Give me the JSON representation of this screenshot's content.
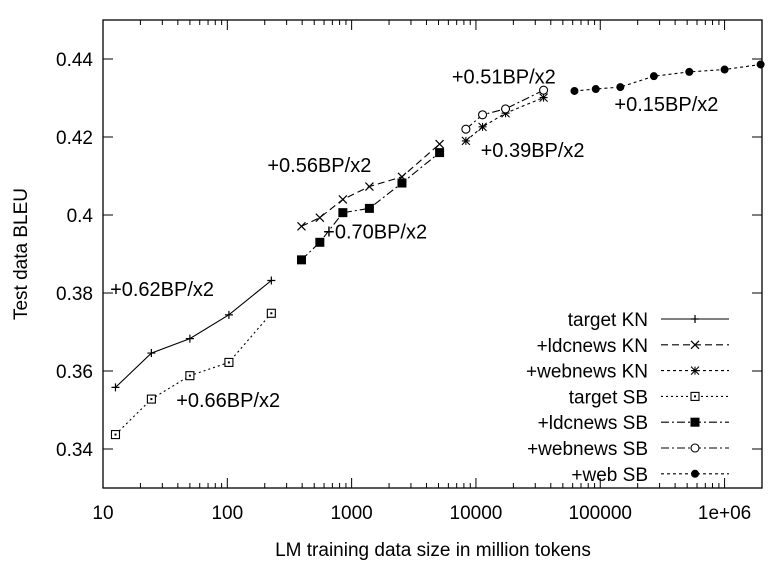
{
  "chart_data": {
    "type": "line",
    "title": "",
    "xlabel": "LM training data size in million tokens",
    "ylabel": "Test data BLEU",
    "xscale": "log",
    "xlim": [
      10,
      2000000
    ],
    "ylim": [
      0.33,
      0.45
    ],
    "grid": false,
    "legend_position": "bottom-right",
    "x_ticks": [
      {
        "value": 10,
        "label": "10"
      },
      {
        "value": 100,
        "label": "100"
      },
      {
        "value": 1000,
        "label": "1000"
      },
      {
        "value": 10000,
        "label": "10000"
      },
      {
        "value": 100000,
        "label": "100000"
      },
      {
        "value": 1000000,
        "label": "1e+06"
      }
    ],
    "y_ticks": [
      {
        "value": 0.34,
        "label": "0.34"
      },
      {
        "value": 0.36,
        "label": "0.36"
      },
      {
        "value": 0.38,
        "label": "0.38"
      },
      {
        "value": 0.4,
        "label": "0.4"
      },
      {
        "value": 0.42,
        "label": "0.42"
      },
      {
        "value": 0.44,
        "label": "0.44"
      }
    ],
    "series": [
      {
        "name": "target KN",
        "marker": "plus",
        "dash": "",
        "points": [
          [
            12.6,
            0.3558
          ],
          [
            24.5,
            0.3646
          ],
          [
            50,
            0.3683
          ],
          [
            103,
            0.3744
          ],
          [
            226,
            0.3832
          ]
        ]
      },
      {
        "name": "+ldcnews KN",
        "marker": "cross",
        "dash": "7,4",
        "points": [
          [
            395,
            0.3971
          ],
          [
            555,
            0.3993
          ],
          [
            850,
            0.404
          ],
          [
            1390,
            0.4073
          ],
          [
            2540,
            0.4098
          ],
          [
            5100,
            0.4182
          ]
        ]
      },
      {
        "name": "+webnews KN",
        "marker": "star",
        "dash": "3,3",
        "points": [
          [
            8300,
            0.419
          ],
          [
            11300,
            0.4226
          ],
          [
            17300,
            0.4261
          ],
          [
            35000,
            0.4301
          ]
        ]
      },
      {
        "name": "target SB",
        "marker": "square-open",
        "dash": "2,3",
        "points": [
          [
            12.6,
            0.3437
          ],
          [
            24.5,
            0.3528
          ],
          [
            50,
            0.3588
          ],
          [
            103,
            0.3622
          ],
          [
            226,
            0.3748
          ]
        ]
      },
      {
        "name": "+ldcnews SB",
        "marker": "square-filled",
        "dash": "8,3,2,3",
        "points": [
          [
            395,
            0.3885
          ],
          [
            555,
            0.393
          ],
          [
            850,
            0.4006
          ],
          [
            1390,
            0.4017
          ],
          [
            2540,
            0.4082
          ],
          [
            5100,
            0.416
          ]
        ]
      },
      {
        "name": "+webnews SB",
        "marker": "circle-open",
        "dash": "8,3,2,3",
        "points": [
          [
            8300,
            0.422
          ],
          [
            11300,
            0.4257
          ],
          [
            17300,
            0.4272
          ],
          [
            35000,
            0.432
          ]
        ]
      },
      {
        "name": "+web SB",
        "marker": "circle-filled",
        "dash": "3,3",
        "points": [
          [
            62000,
            0.4318
          ],
          [
            92000,
            0.4323
          ],
          [
            145000,
            0.4328
          ],
          [
            270000,
            0.4356
          ],
          [
            520000,
            0.4367
          ],
          [
            1000000,
            0.4373
          ],
          [
            1950000,
            0.4386
          ]
        ]
      }
    ],
    "annotations": [
      {
        "text": "+0.62BP/x2",
        "x": 11.4,
        "y": 0.3792
      },
      {
        "text": "+0.66BP/x2",
        "x": 38.8,
        "y": 0.3508
      },
      {
        "text": "+0.56BP/x2",
        "x": 210,
        "y": 0.411
      },
      {
        "text": "+0.70BP/x2",
        "x": 590,
        "y": 0.394
      },
      {
        "text": "+0.51BP/x2",
        "x": 6400,
        "y": 0.4337
      },
      {
        "text": "+0.39BP/x2",
        "x": 10900,
        "y": 0.4149
      },
      {
        "text": "+0.15BP/x2",
        "x": 130000,
        "y": 0.4267
      }
    ]
  }
}
